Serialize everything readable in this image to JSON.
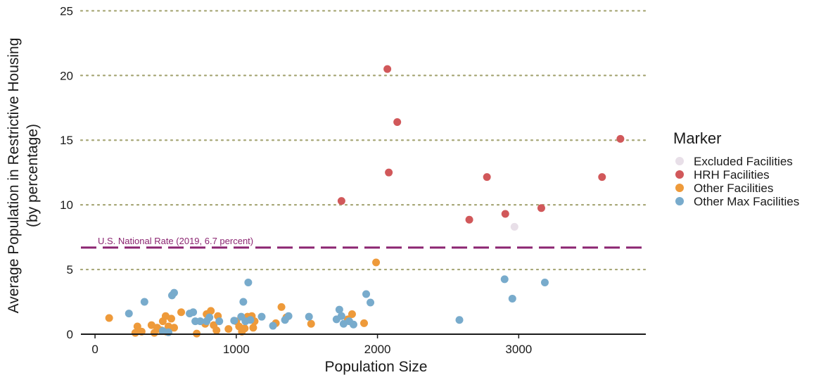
{
  "chart_data": {
    "type": "scatter",
    "xlabel": "Population Size",
    "ylabel_lines": [
      "Average Population in Restrictive Housing",
      "(by percentage)"
    ],
    "xlim": [
      -100,
      3900
    ],
    "ylim": [
      0,
      25.4
    ],
    "x_ticks": [
      0,
      1000,
      2000,
      3000
    ],
    "x_tick_labels": [
      "0",
      "1000",
      "2000",
      "3000"
    ],
    "y_ticks": [
      0,
      5,
      10,
      15,
      20,
      25
    ],
    "y_tick_labels": [
      "0",
      "5",
      "10",
      "15",
      "20",
      "25"
    ],
    "grid": "horizontal dotted",
    "legend": {
      "title": "Marker",
      "position": "right",
      "entries": [
        {
          "label": "Excluded Facilities",
          "color": "#e8dfe8"
        },
        {
          "label": "HRH Facilities",
          "color": "#d1585a"
        },
        {
          "label": "Other Facilities",
          "color": "#ee9a3a"
        },
        {
          "label": "Other Max Facilities",
          "color": "#78abcc"
        }
      ]
    },
    "reference_line": {
      "y": 6.7,
      "label": "U.S. National Rate (2019, 6.7 percent)",
      "color": "#8b2571",
      "style": "dashed"
    },
    "series": [
      {
        "name": "Excluded Facilities",
        "color": "#e8dfe8",
        "points": [
          [
            2970,
            8.3
          ]
        ]
      },
      {
        "name": "HRH Facilities",
        "color": "#d1585a",
        "points": [
          [
            2070,
            20.5
          ],
          [
            2140,
            16.4
          ],
          [
            2080,
            12.5
          ],
          [
            1745,
            10.3
          ],
          [
            2650,
            8.85
          ],
          [
            2775,
            12.15
          ],
          [
            2905,
            9.3
          ],
          [
            3160,
            9.75
          ],
          [
            3590,
            12.15
          ],
          [
            3720,
            15.1
          ]
        ]
      },
      {
        "name": "Other Facilities",
        "color": "#ee9a3a",
        "points": [
          [
            100,
            1.25
          ],
          [
            300,
            0.6
          ],
          [
            285,
            0.1
          ],
          [
            330,
            0.2
          ],
          [
            400,
            0.7
          ],
          [
            420,
            0.1
          ],
          [
            440,
            0.5
          ],
          [
            470,
            0.3
          ],
          [
            480,
            1.0
          ],
          [
            500,
            1.4
          ],
          [
            505,
            0.2
          ],
          [
            520,
            0.6
          ],
          [
            540,
            1.2
          ],
          [
            560,
            0.5
          ],
          [
            610,
            1.7
          ],
          [
            780,
            0.8
          ],
          [
            790,
            1.55
          ],
          [
            820,
            1.8
          ],
          [
            840,
            0.7
          ],
          [
            870,
            1.4
          ],
          [
            860,
            0.3
          ],
          [
            945,
            0.4
          ],
          [
            1000,
            1.0
          ],
          [
            1020,
            0.6
          ],
          [
            1040,
            0.2
          ],
          [
            1060,
            0.45
          ],
          [
            1080,
            1.35
          ],
          [
            1110,
            1.4
          ],
          [
            1120,
            0.5
          ],
          [
            1130,
            1.0
          ],
          [
            1280,
            0.85
          ],
          [
            1320,
            2.1
          ],
          [
            1355,
            1.3
          ],
          [
            1530,
            0.8
          ],
          [
            1790,
            1.15
          ],
          [
            1820,
            1.55
          ],
          [
            1905,
            0.85
          ],
          [
            1990,
            5.55
          ],
          [
            720,
            0.05
          ]
        ]
      },
      {
        "name": "Other Max Facilities",
        "color": "#78abcc",
        "points": [
          [
            240,
            1.6
          ],
          [
            350,
            2.5
          ],
          [
            545,
            3.0
          ],
          [
            560,
            3.2
          ],
          [
            480,
            0.25
          ],
          [
            520,
            0.15
          ],
          [
            670,
            1.6
          ],
          [
            695,
            1.7
          ],
          [
            710,
            1.0
          ],
          [
            745,
            1.0
          ],
          [
            790,
            1.0
          ],
          [
            810,
            1.3
          ],
          [
            880,
            1.0
          ],
          [
            985,
            1.05
          ],
          [
            1035,
            1.35
          ],
          [
            1050,
            2.5
          ],
          [
            1065,
            1.0
          ],
          [
            1085,
            4.0
          ],
          [
            1100,
            1.1
          ],
          [
            1180,
            1.35
          ],
          [
            1260,
            0.65
          ],
          [
            1345,
            1.1
          ],
          [
            1370,
            1.4
          ],
          [
            1515,
            1.35
          ],
          [
            1710,
            1.15
          ],
          [
            1730,
            1.9
          ],
          [
            1745,
            1.4
          ],
          [
            1760,
            0.8
          ],
          [
            1800,
            1.0
          ],
          [
            1830,
            0.75
          ],
          [
            1920,
            3.1
          ],
          [
            1950,
            2.45
          ],
          [
            2580,
            1.1
          ],
          [
            2900,
            4.25
          ],
          [
            2955,
            2.75
          ],
          [
            3185,
            4.0
          ]
        ]
      }
    ]
  }
}
